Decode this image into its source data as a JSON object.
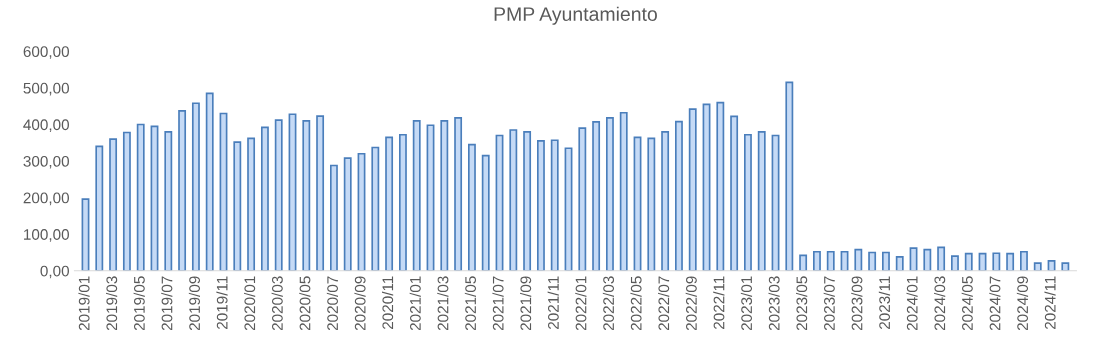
{
  "chart_data": {
    "type": "bar",
    "title": "PMP Ayuntamiento",
    "categories": [
      "2019/01",
      null,
      "2019/03",
      null,
      "2019/05",
      null,
      "2019/07",
      null,
      "2019/09",
      null,
      "2019/11",
      null,
      "2020/01",
      null,
      "2020/03",
      null,
      "2020/05",
      null,
      "2020/07",
      null,
      "2020/09",
      null,
      "2020/11",
      null,
      "2021/01",
      null,
      "2021/03",
      null,
      "2021/05",
      null,
      "2021/07",
      null,
      "2021/09",
      null,
      "2021/11",
      null,
      "2022/01",
      null,
      "2022/03",
      null,
      "2022/05",
      null,
      "2022/07",
      null,
      "2022/09",
      null,
      "2022/11",
      null,
      "2023/01",
      null,
      "2023/03",
      null,
      "2023/05",
      null,
      "2023/07",
      null,
      "2023/09",
      null,
      "2023/11",
      null,
      "2024/01",
      null,
      "2024/03",
      null,
      "2024/05",
      null,
      "2024/07",
      null,
      "2024/09",
      null,
      "2024/11",
      null
    ],
    "values": [
      196,
      340,
      360,
      378,
      400,
      395,
      380,
      437,
      458,
      485,
      430,
      352,
      362,
      392,
      412,
      428,
      410,
      423,
      288,
      308,
      320,
      337,
      365,
      372,
      410,
      398,
      410,
      418,
      345,
      315,
      370,
      385,
      380,
      355,
      357,
      335,
      390,
      407,
      418,
      432,
      365,
      362,
      380,
      408,
      442,
      455,
      460,
      422,
      372,
      380,
      370,
      515,
      42,
      52,
      52,
      52,
      58,
      50,
      50,
      38,
      62,
      58,
      64,
      40,
      47,
      47,
      48,
      47,
      52,
      21,
      27,
      21
    ],
    "color": "#c5daf6",
    "ylim": [
      0,
      600
    ],
    "yticks": [
      {
        "value": 0,
        "label": "0,00"
      },
      {
        "value": 100,
        "label": "100,00"
      },
      {
        "value": 200,
        "label": "200,00"
      },
      {
        "value": 300,
        "label": "300,00"
      },
      {
        "value": 400,
        "label": "400,00"
      },
      {
        "value": 500,
        "label": "500,00"
      },
      {
        "value": 600,
        "label": "600,00"
      }
    ],
    "grid": false
  }
}
